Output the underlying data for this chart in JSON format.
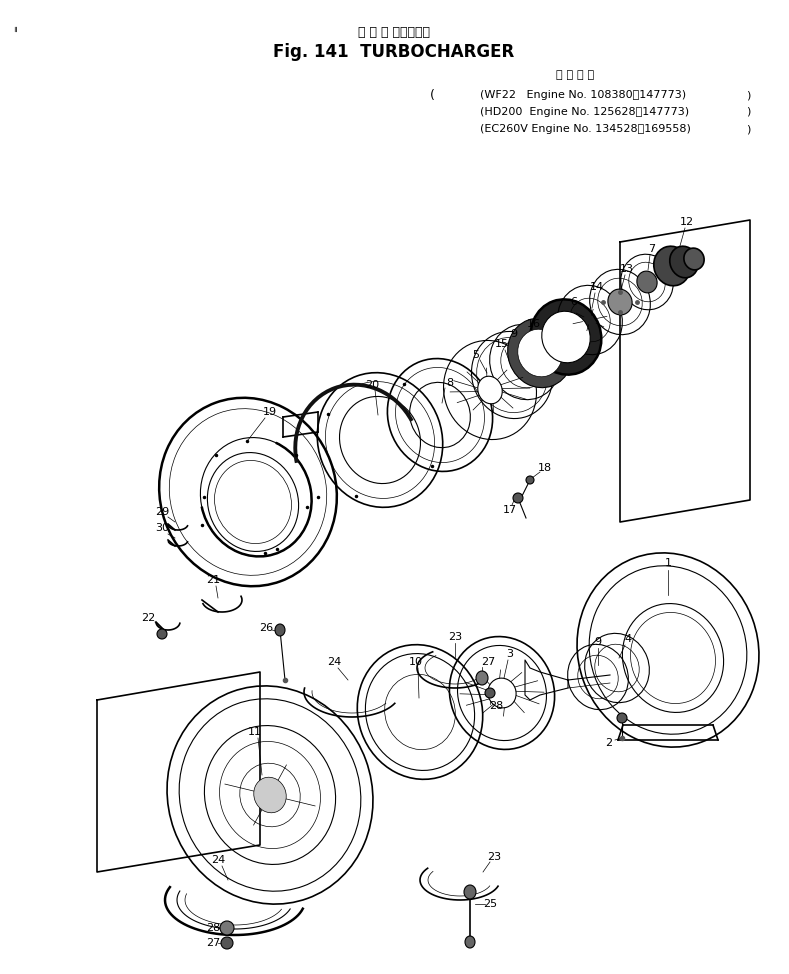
{
  "title_japanese": "タ ー ボ チャージャ",
  "title_english": "Fig. 141  TURBOCHARGER",
  "subtitle_header": "適 用 号 機",
  "subtitle_lines": [
    "(WF22   Engine No. 108380～147773)",
    "(HD200  Engine No. 125628～147773)",
    "(EC260V Engine No. 134528～169558)"
  ],
  "bg_color": "#ffffff",
  "line_color": "#000000",
  "figsize": [
    7.89,
    9.74
  ],
  "dpi": 100
}
